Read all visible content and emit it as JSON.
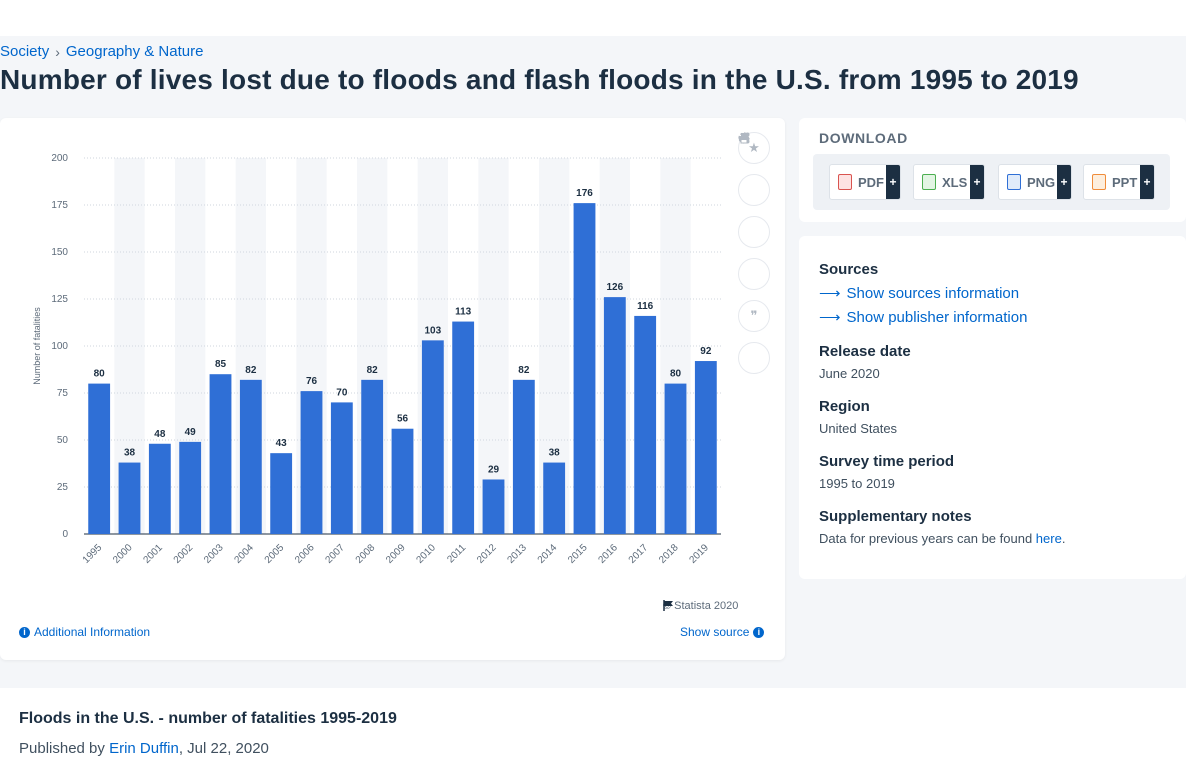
{
  "breadcrumb": {
    "items": [
      "Society",
      "Geography & Nature"
    ],
    "separator": "›"
  },
  "page": {
    "title": "Number of lives lost due to floods and flash floods in the U.S. from 1995 to 2019"
  },
  "toolbar": {
    "icons": [
      "star-icon",
      "bell-icon",
      "gear-icon",
      "share-icon",
      "quote-icon",
      "print-icon"
    ]
  },
  "chart_footer": {
    "copyright": "© Statista 2020",
    "additional_info": "Additional Information",
    "show_source": "Show source"
  },
  "chart_data": {
    "type": "bar",
    "categories": [
      "1995",
      "2000",
      "2001",
      "2002",
      "2003",
      "2004",
      "2005",
      "2006",
      "2007",
      "2008",
      "2009",
      "2010",
      "2011",
      "2012",
      "2013",
      "2014",
      "2015",
      "2016",
      "2017",
      "2018",
      "2019"
    ],
    "values": [
      80,
      38,
      48,
      49,
      85,
      82,
      43,
      76,
      70,
      82,
      56,
      103,
      113,
      29,
      82,
      38,
      176,
      126,
      116,
      80,
      92
    ],
    "ylabel": "Number of fatalities",
    "xlabel": "",
    "ylim": [
      0,
      200
    ],
    "yticks": [
      0,
      25,
      50,
      75,
      100,
      125,
      150,
      175,
      200
    ],
    "grid": true,
    "bar_color": "#2f6fd6",
    "stripe_color": "#f4f6f9"
  },
  "download": {
    "title": "DOWNLOAD",
    "buttons": [
      {
        "label": "PDF",
        "icon": "pdf-file-icon",
        "color": "#d9534f"
      },
      {
        "label": "XLS",
        "icon": "xls-file-icon",
        "color": "#4caf50"
      },
      {
        "label": "PNG",
        "icon": "png-file-icon",
        "color": "#2f6fd6"
      },
      {
        "label": "PPT",
        "icon": "ppt-file-icon",
        "color": "#f08c3a"
      }
    ],
    "plus": "+"
  },
  "sources": {
    "heading": "Sources",
    "show_sources": "Show sources information",
    "show_publisher": "Show publisher information",
    "release_heading": "Release date",
    "release_value": "June 2020",
    "region_heading": "Region",
    "region_value": "United States",
    "period_heading": "Survey time period",
    "period_value": "1995 to 2019",
    "notes_heading": "Supplementary notes",
    "notes_text": "Data for previous years can be found ",
    "notes_link": "here",
    "notes_end": "."
  },
  "publication": {
    "title": "Floods in the U.S. - number of fatalities 1995-2019",
    "published_prefix": "Published by ",
    "author": "Erin Duffin",
    "date": ", Jul 22, 2020"
  }
}
